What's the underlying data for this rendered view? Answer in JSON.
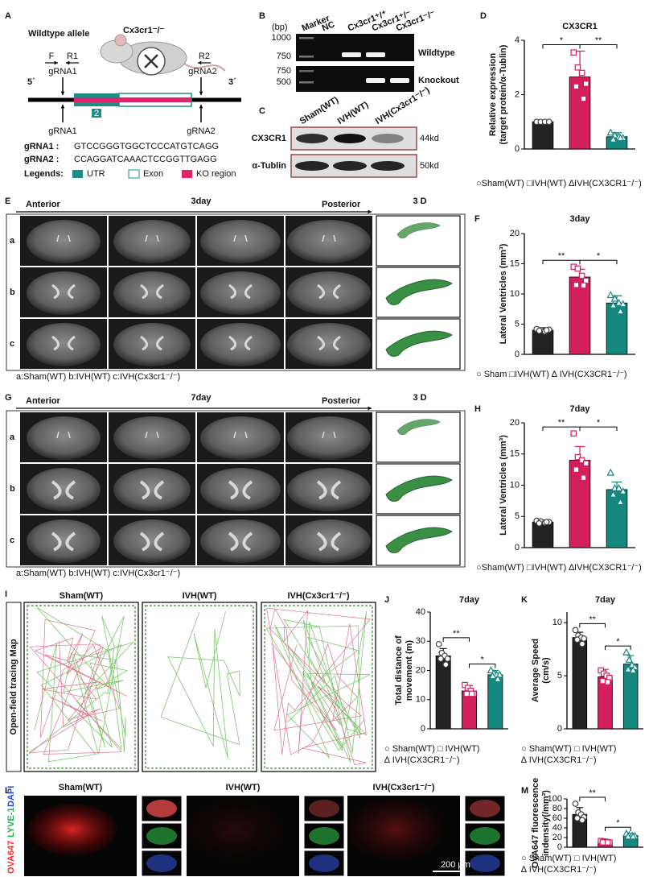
{
  "panels": {
    "letters": [
      "A",
      "B",
      "C",
      "D",
      "E",
      "F",
      "G",
      "H",
      "I",
      "J",
      "K",
      "L",
      "M"
    ],
    "a": {
      "title": "Wildtype allele",
      "mouse": "Cx3cr1⁻/⁻",
      "primers": [
        "F",
        "R1",
        "R2"
      ],
      "grna_top": [
        "gRNA1",
        "gRNA2"
      ],
      "ends": [
        "5´",
        "3´"
      ],
      "exon": "2",
      "grna_bottom": [
        "gRNA1",
        "gRNA2"
      ],
      "sequences": [
        {
          "name": "gRNA1 :",
          "seq": "GTCCGGGTGGCTCCCATGTCAGG"
        },
        {
          "name": "gRNA2 :",
          "seq": "CCAGGATCAAACTCCGGTTGAGG"
        }
      ],
      "legend_title": "Legends:",
      "legend": [
        "UTR",
        "Exon",
        "KO region"
      ]
    },
    "b": {
      "unit": "(bp)",
      "lanes": [
        "Marker",
        "NC",
        "Cx3cr1⁺/⁺",
        "Cx3cr1⁺/⁻",
        "Cx3cr1⁻/⁻"
      ],
      "sizes_top": [
        "1000",
        "750"
      ],
      "sizes_bottom": [
        "750",
        "500"
      ],
      "rows": [
        "Wildtype",
        "Knockout"
      ]
    },
    "c": {
      "lanes": [
        "Sham(WT)",
        "IVH(WT)",
        "IVH(Cx3cr1⁻/⁻)"
      ],
      "proteins": [
        "CX3CR1",
        "α-Tublin"
      ],
      "sizes": [
        "44kd",
        "50kd"
      ]
    },
    "e": {
      "start": "Anterior",
      "time": "3day",
      "end": "Posterior",
      "view": "3 D",
      "rows": [
        "a",
        "b",
        "c"
      ],
      "caption": "a:Sham(WT)  b:IVH(WT)  c:IVH(Cx3cr1⁻/⁻)"
    },
    "g": {
      "start": "Anterior",
      "time": "7day",
      "end": "Posterior",
      "view": "3 D",
      "rows": [
        "a",
        "b",
        "c"
      ],
      "caption": "a:Sham(WT)  b:IVH(WT)  c:IVH(Cx3cr1⁻/⁻)"
    },
    "i": {
      "groups": [
        "Sham(WT)",
        "IVH(WT)",
        "IVH(Cx3cr1⁻/⁻)"
      ],
      "side": "Open-field tracing Map"
    },
    "l": {
      "groups": [
        "Sham(WT)",
        "IVH(WT)",
        "IVH(Cx3cr1⁻/⁻)"
      ],
      "stains": [
        "OVA647",
        "LYVE-1",
        "DAPI"
      ],
      "scale": "200 μm"
    }
  },
  "chart_data": [
    {
      "type": "bar",
      "title": "CX3CR1",
      "ylabel": [
        "Relative expression",
        "(target protein/α-Tublin)"
      ],
      "ylim": [
        0,
        4
      ],
      "yticks": [
        0,
        2,
        4
      ],
      "values": [
        1.0,
        2.65,
        0.45
      ],
      "errors": [
        0.05,
        0.95,
        0.15
      ],
      "points": [
        [
          1.0,
          1.0,
          1.0,
          1.0
        ],
        [
          3.55,
          3.0,
          2.8,
          2.4,
          2.3,
          1.85
        ],
        [
          0.6,
          0.5,
          0.45,
          0.4,
          0.35,
          0.4
        ]
      ],
      "colors": [
        "#222222",
        "#d31f5c",
        "#14877e"
      ],
      "markers": [
        "circle",
        "square",
        "triangle"
      ],
      "significance": [
        "*",
        "**"
      ],
      "legend": [
        "○Sham(WT) □IVH(WT) ∆IVH(CX3CR1⁻/⁻)"
      ]
    },
    {
      "type": "bar",
      "title": "3day",
      "ylabel": [
        "Lateral Ventricles (mm³)"
      ],
      "ylim": [
        0,
        20
      ],
      "yticks": [
        0,
        5,
        10,
        15,
        20
      ],
      "values": [
        4.0,
        12.8,
        8.5
      ],
      "errors": [
        0.4,
        1.3,
        1.2
      ],
      "points": [
        [
          4.2,
          4.0,
          3.8,
          4.1,
          3.9,
          4.0
        ],
        [
          14.5,
          14.2,
          13.0,
          12.2,
          11.5,
          11.4
        ],
        [
          9.8,
          9.2,
          8.5,
          8.3,
          8.1,
          7.1
        ]
      ],
      "colors": [
        "#222222",
        "#d31f5c",
        "#14877e"
      ],
      "markers": [
        "circle",
        "square",
        "triangle"
      ],
      "significance": [
        "**",
        "*"
      ],
      "legend": [
        "○ Sham □IVH(WT) ∆ IVH(CX3CR1⁻/⁻)"
      ]
    },
    {
      "type": "bar",
      "title": "7day",
      "ylabel": [
        "Lateral Ventricles (mm³)"
      ],
      "ylim": [
        0,
        20
      ],
      "yticks": [
        0,
        5,
        10,
        15,
        20
      ],
      "values": [
        4.1,
        14.0,
        9.3
      ],
      "errors": [
        0.3,
        2.2,
        1.2
      ],
      "points": [
        [
          4.3,
          4.2,
          4.0,
          4.1,
          3.9,
          4.1
        ],
        [
          18.3,
          14.5,
          14.0,
          13.5,
          12.5,
          11.2
        ],
        [
          12.0,
          9.5,
          9.5,
          9.0,
          8.5,
          7.3
        ]
      ],
      "colors": [
        "#222222",
        "#d31f5c",
        "#14877e"
      ],
      "markers": [
        "circle",
        "square",
        "triangle"
      ],
      "significance": [
        "**",
        "*"
      ],
      "legend": [
        "○Sham(WT) □IVH(WT) ∆IVH(CX3CR1⁻/⁻)"
      ]
    },
    {
      "type": "bar",
      "title": "7day",
      "ylabel": [
        "Total distance of",
        "movement (m)"
      ],
      "ylim": [
        0,
        40
      ],
      "yticks": [
        0,
        10,
        20,
        30,
        40
      ],
      "values": [
        25,
        13,
        18.5
      ],
      "errors": [
        2.5,
        1.8,
        1.5
      ],
      "points": [
        [
          29,
          26,
          25,
          24,
          24,
          22
        ],
        [
          15,
          14,
          13,
          12,
          12,
          12
        ],
        [
          20,
          19,
          18.5,
          18.5,
          18,
          17
        ]
      ],
      "colors": [
        "#222222",
        "#d31f5c",
        "#14877e"
      ],
      "markers": [
        "circle",
        "square",
        "triangle"
      ],
      "significance": [
        "**",
        "*"
      ],
      "legend": [
        "○ Sham(WT)      □ IVH(WT)",
        "∆ IVH(CX3CR1⁻/⁻)"
      ]
    },
    {
      "type": "bar",
      "title": "7day",
      "ylabel": [
        "Average Speed",
        "(cm/s)"
      ],
      "ylim": [
        0,
        11
      ],
      "yticks": [
        0,
        5,
        10
      ],
      "values": [
        8.6,
        4.9,
        6.1
      ],
      "errors": [
        0.5,
        0.7,
        0.8
      ],
      "points": [
        [
          9.3,
          8.8,
          8.6,
          8.5,
          8.4,
          8.0
        ],
        [
          5.5,
          5.2,
          5.0,
          4.8,
          4.5,
          4.4
        ],
        [
          7.2,
          6.5,
          6.0,
          5.8,
          5.6,
          5.5
        ]
      ],
      "colors": [
        "#222222",
        "#d31f5c",
        "#14877e"
      ],
      "markers": [
        "circle",
        "square",
        "triangle"
      ],
      "significance": [
        "**",
        "*"
      ],
      "legend": [
        "○ Sham(WT)      □ IVH(WT)",
        "∆ IVH(CX3CR1⁻/⁻)"
      ]
    },
    {
      "type": "bar",
      "ylabel": [
        "OVA647 fluorescence",
        "indensity(/mm²)"
      ],
      "ylim": [
        0,
        100
      ],
      "yticks": [
        0,
        20,
        40,
        60,
        80,
        100
      ],
      "values": [
        68,
        11,
        24
      ],
      "errors": [
        14,
        2,
        3
      ],
      "points": [
        [
          90,
          72,
          68,
          62,
          60,
          56
        ],
        [
          13,
          12,
          11,
          10,
          10,
          10
        ],
        [
          28,
          25,
          24,
          23,
          22,
          22
        ]
      ],
      "colors": [
        "#222222",
        "#d31f5c",
        "#14877e"
      ],
      "markers": [
        "circle",
        "square",
        "triangle"
      ],
      "significance": [
        "**",
        "*"
      ],
      "legend": [
        "○ Sham(WT)      □ IVH(WT)",
        "∆ IVH(CX3CR1⁻/⁻)"
      ]
    }
  ]
}
